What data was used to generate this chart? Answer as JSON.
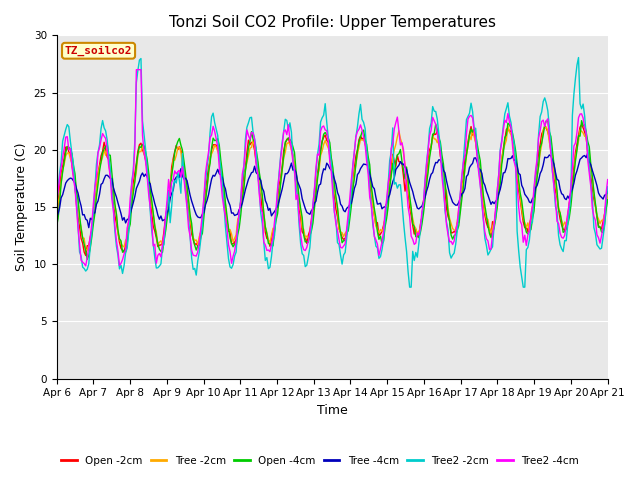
{
  "title": "Tonzi Soil CO2 Profile: Upper Temperatures",
  "xlabel": "Time",
  "ylabel": "Soil Temperature (C)",
  "ylim": [
    0,
    30
  ],
  "yticks": [
    0,
    5,
    10,
    15,
    20,
    25,
    30
  ],
  "date_labels": [
    "Apr 6",
    "Apr 7",
    "Apr 8",
    "Apr 9",
    "Apr 10",
    "Apr 11",
    "Apr 12",
    "Apr 13",
    "Apr 14",
    "Apr 15",
    "Apr 16",
    "Apr 17",
    "Apr 18",
    "Apr 19",
    "Apr 20",
    "Apr 21"
  ],
  "legend_label": "TZ_soilco2",
  "series": [
    {
      "label": "Open -2cm",
      "color": "#ff0000"
    },
    {
      "label": "Tree -2cm",
      "color": "#ffaa00"
    },
    {
      "label": "Open -4cm",
      "color": "#00cc00"
    },
    {
      "label": "Tree -4cm",
      "color": "#0000bb"
    },
    {
      "label": "Tree2 -2cm",
      "color": "#00cccc"
    },
    {
      "label": "Tree2 -4cm",
      "color": "#ff00ff"
    }
  ],
  "background_color": "#e8e8e8",
  "title_fontsize": 11,
  "axis_label_fontsize": 9,
  "tick_fontsize": 7.5,
  "legend_box_color": "#ffffcc",
  "legend_box_edge": "#cc8800"
}
